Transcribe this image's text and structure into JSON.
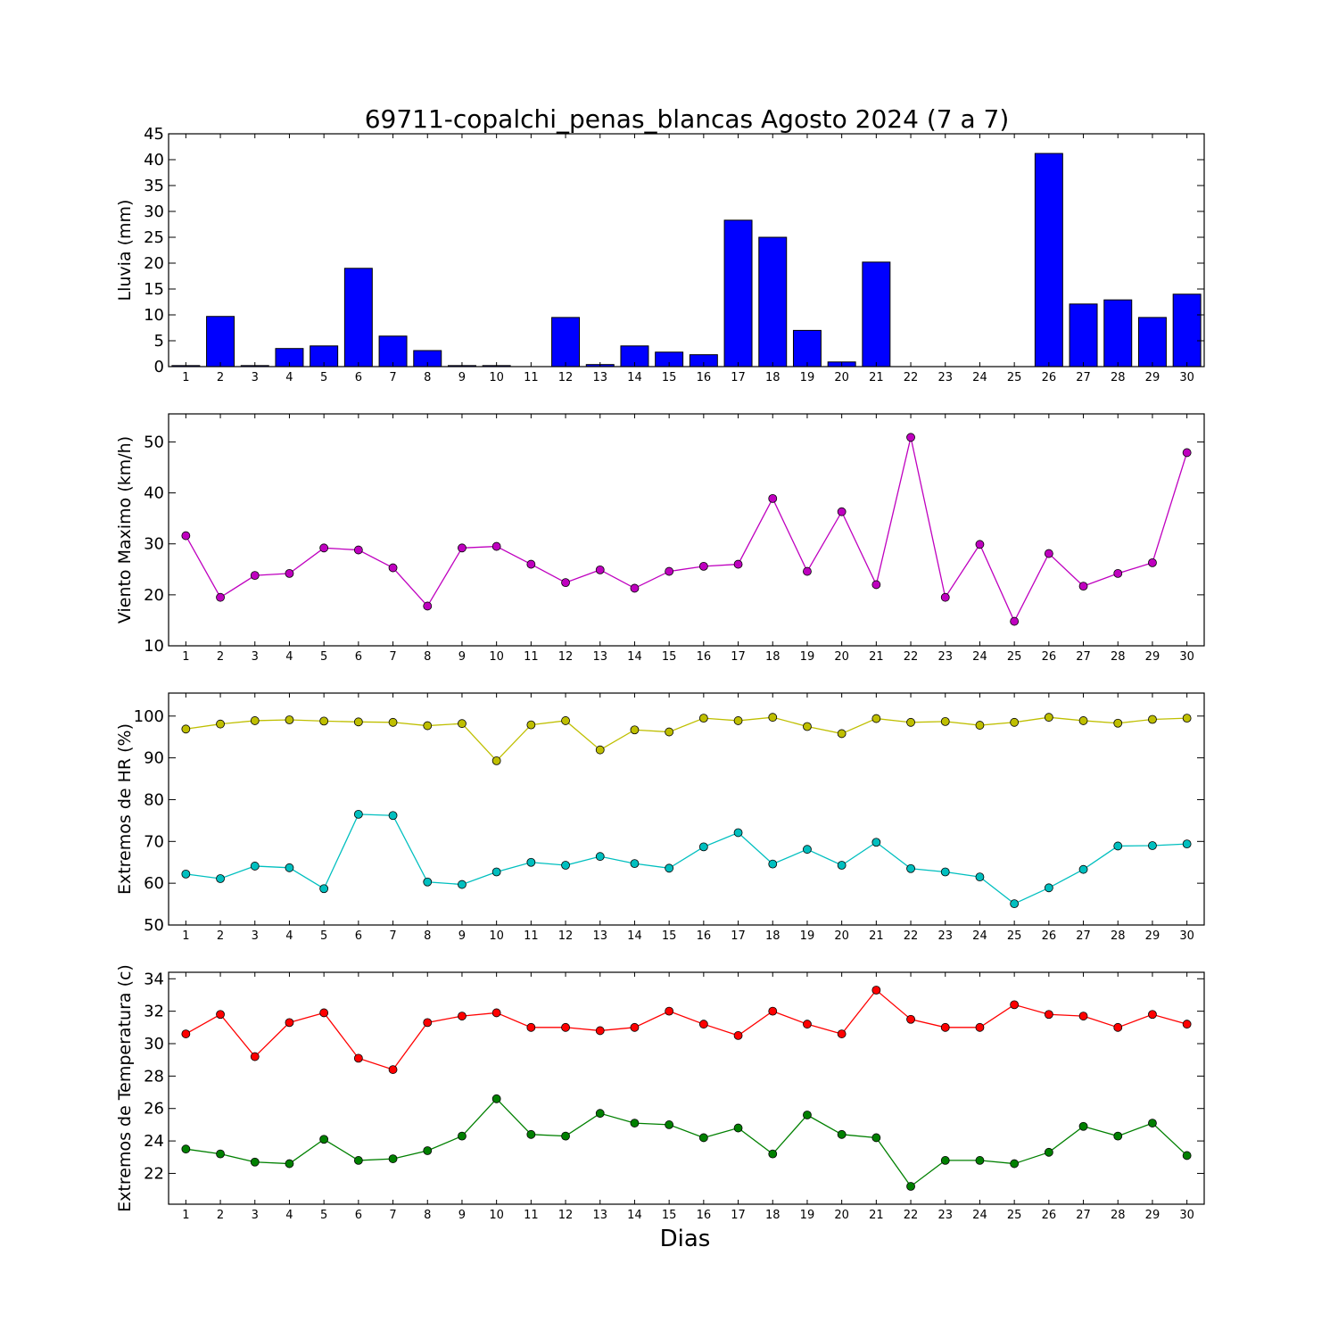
{
  "figure": {
    "title": "69711-copalchi_penas_blancas Agosto 2024  (7 a 7)",
    "xlabel": "Dias"
  },
  "chart_data": [
    {
      "type": "bar",
      "ylabel": "Lluvia (mm)",
      "categories": [
        "1",
        "2",
        "3",
        "4",
        "5",
        "6",
        "7",
        "8",
        "9",
        "10",
        "11",
        "12",
        "13",
        "14",
        "15",
        "16",
        "17",
        "18",
        "19",
        "20",
        "21",
        "22",
        "23",
        "24",
        "25",
        "26",
        "27",
        "28",
        "29",
        "30"
      ],
      "values": [
        0.2,
        9.7,
        0.2,
        3.5,
        4.0,
        19.0,
        5.9,
        3.1,
        0.2,
        0.2,
        0,
        9.5,
        0.4,
        4.0,
        2.8,
        2.3,
        28.3,
        25.0,
        7.0,
        0.9,
        20.2,
        0,
        0,
        0,
        0,
        41.2,
        12.1,
        12.9,
        9.5,
        14.0
      ],
      "ylim": [
        0,
        45
      ],
      "yticks": [
        0,
        5,
        10,
        15,
        20,
        25,
        30,
        35,
        40,
        45
      ],
      "color": "#0000ff"
    },
    {
      "type": "line",
      "ylabel": "Viento Maximo (km/h)",
      "categories": [
        "1",
        "2",
        "3",
        "4",
        "5",
        "6",
        "7",
        "8",
        "9",
        "10",
        "11",
        "12",
        "13",
        "14",
        "15",
        "16",
        "17",
        "18",
        "19",
        "20",
        "21",
        "22",
        "23",
        "24",
        "25",
        "26",
        "27",
        "28",
        "29",
        "30"
      ],
      "series": [
        {
          "color": "#bf00bf",
          "values": [
            31.6,
            19.5,
            23.8,
            24.2,
            29.2,
            28.8,
            25.3,
            17.8,
            29.2,
            29.5,
            26.0,
            22.4,
            24.9,
            21.3,
            24.6,
            25.6,
            26.0,
            38.9,
            24.6,
            36.3,
            22.0,
            50.9,
            19.5,
            29.9,
            14.8,
            28.1,
            21.7,
            24.2,
            26.3,
            47.9
          ]
        }
      ],
      "ylim": [
        10,
        55.5
      ],
      "yticks": [
        10,
        20,
        30,
        40,
        50
      ]
    },
    {
      "type": "line",
      "ylabel": "Extremos de HR (%)",
      "categories": [
        "1",
        "2",
        "3",
        "4",
        "5",
        "6",
        "7",
        "8",
        "9",
        "10",
        "11",
        "12",
        "13",
        "14",
        "15",
        "16",
        "17",
        "18",
        "19",
        "20",
        "21",
        "22",
        "23",
        "24",
        "25",
        "26",
        "27",
        "28",
        "29",
        "30"
      ],
      "series": [
        {
          "color": "#bfbf00",
          "values": [
            96.9,
            98.1,
            98.9,
            99.1,
            98.8,
            98.6,
            98.5,
            97.7,
            98.2,
            89.3,
            97.9,
            98.9,
            91.9,
            96.7,
            96.2,
            99.5,
            98.9,
            99.7,
            97.5,
            95.8,
            99.4,
            98.5,
            98.7,
            97.8,
            98.5,
            99.7,
            98.9,
            98.3,
            99.2,
            99.5
          ]
        },
        {
          "color": "#00bfbf",
          "values": [
            62.2,
            61.1,
            64.1,
            63.7,
            58.7,
            76.5,
            76.2,
            60.3,
            59.7,
            62.7,
            65.0,
            64.3,
            66.4,
            64.7,
            63.6,
            68.7,
            72.1,
            64.6,
            68.1,
            64.3,
            69.8,
            63.5,
            62.7,
            61.5,
            55.1,
            58.9,
            63.3,
            68.9,
            69.0,
            69.4
          ]
        }
      ],
      "ylim": [
        50,
        105.5
      ],
      "yticks": [
        50,
        60,
        70,
        80,
        90,
        100
      ]
    },
    {
      "type": "line",
      "ylabel": "Extremos de Temperatura (c)",
      "categories": [
        "1",
        "2",
        "3",
        "4",
        "5",
        "6",
        "7",
        "8",
        "9",
        "10",
        "11",
        "12",
        "13",
        "14",
        "15",
        "16",
        "17",
        "18",
        "19",
        "20",
        "21",
        "22",
        "23",
        "24",
        "25",
        "26",
        "27",
        "28",
        "29",
        "30"
      ],
      "series": [
        {
          "color": "#ff0000",
          "values": [
            30.6,
            31.8,
            29.2,
            31.3,
            31.9,
            29.1,
            28.4,
            31.3,
            31.7,
            31.9,
            31.0,
            31.0,
            30.8,
            31.0,
            32.0,
            31.2,
            30.5,
            32.0,
            31.2,
            30.6,
            33.3,
            31.5,
            31.0,
            31.0,
            32.4,
            31.8,
            31.7,
            31.0,
            31.8,
            31.2
          ]
        },
        {
          "color": "#008000",
          "values": [
            23.5,
            23.2,
            22.7,
            22.6,
            24.1,
            22.8,
            22.9,
            23.4,
            24.3,
            26.6,
            24.4,
            24.3,
            25.7,
            25.1,
            25.0,
            24.2,
            24.8,
            23.2,
            25.6,
            24.4,
            24.2,
            21.2,
            22.8,
            22.8,
            22.6,
            23.3,
            24.9,
            24.3,
            25.1,
            23.1
          ]
        }
      ],
      "ylim": [
        20.1,
        34.4
      ],
      "yticks": [
        22,
        24,
        26,
        28,
        30,
        32,
        34
      ]
    }
  ]
}
